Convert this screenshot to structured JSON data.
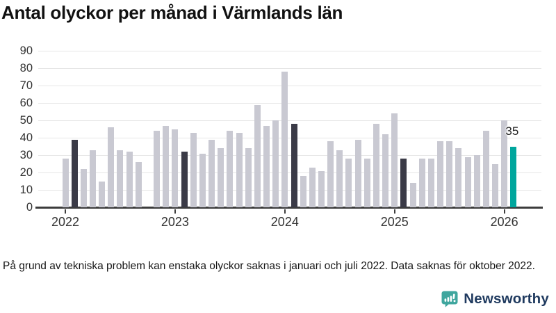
{
  "title": "Antal olyckor per månad i Värmlands län",
  "footnote": "På grund av tekniska problem kan enstaka olyckor saknas i januari och juli 2022. Data saknas för oktober 2022.",
  "branding": {
    "wordmark": "Newsworthy",
    "logo_icon": "speech-bubble-bar-chart-icon"
  },
  "colors": {
    "bar_default": "#c9c9d2",
    "bar_highlight": "#3b3b47",
    "bar_current": "#00a69d",
    "gridline": "#e6e6e6",
    "axis": "#3c3c3c",
    "title_text": "#111111",
    "tick_text": "#333333",
    "footnote_text": "#161616",
    "logo_teal": "#3fa69e",
    "logo_navy": "#1f3a5f"
  },
  "chart_data": {
    "type": "bar",
    "title": "Antal olyckor per månad i Värmlands län",
    "xlabel": "",
    "ylabel": "",
    "ylim": [
      0,
      90
    ],
    "yticks": [
      0,
      10,
      20,
      30,
      40,
      50,
      60,
      70,
      80,
      90
    ],
    "xtick_labels": [
      "2022",
      "2023",
      "2024",
      "2025",
      "2026"
    ],
    "grid": "horizontal",
    "legend": "none",
    "annotation": {
      "month": "2026-02",
      "text": "35"
    },
    "series": [
      {
        "name": "Antal olyckor",
        "points": [
          {
            "month": "2022-01",
            "value": 28,
            "style": "default"
          },
          {
            "month": "2022-02",
            "value": 39,
            "style": "highlight"
          },
          {
            "month": "2022-03",
            "value": 22,
            "style": "default"
          },
          {
            "month": "2022-04",
            "value": 33,
            "style": "default"
          },
          {
            "month": "2022-05",
            "value": 15,
            "style": "default"
          },
          {
            "month": "2022-06",
            "value": 46,
            "style": "default"
          },
          {
            "month": "2022-07",
            "value": 33,
            "style": "default"
          },
          {
            "month": "2022-08",
            "value": 32,
            "style": "default"
          },
          {
            "month": "2022-09",
            "value": 26,
            "style": "default"
          },
          {
            "month": "2022-10",
            "value": null,
            "style": "default"
          },
          {
            "month": "2022-11",
            "value": 44,
            "style": "default"
          },
          {
            "month": "2022-12",
            "value": 47,
            "style": "default"
          },
          {
            "month": "2023-01",
            "value": 45,
            "style": "default"
          },
          {
            "month": "2023-02",
            "value": 32,
            "style": "highlight"
          },
          {
            "month": "2023-03",
            "value": 43,
            "style": "default"
          },
          {
            "month": "2023-04",
            "value": 31,
            "style": "default"
          },
          {
            "month": "2023-05",
            "value": 39,
            "style": "default"
          },
          {
            "month": "2023-06",
            "value": 34,
            "style": "default"
          },
          {
            "month": "2023-07",
            "value": 44,
            "style": "default"
          },
          {
            "month": "2023-08",
            "value": 43,
            "style": "default"
          },
          {
            "month": "2023-09",
            "value": 34,
            "style": "default"
          },
          {
            "month": "2023-10",
            "value": 59,
            "style": "default"
          },
          {
            "month": "2023-11",
            "value": 47,
            "style": "default"
          },
          {
            "month": "2023-12",
            "value": 50,
            "style": "default"
          },
          {
            "month": "2024-01",
            "value": 78,
            "style": "default"
          },
          {
            "month": "2024-02",
            "value": 48,
            "style": "highlight"
          },
          {
            "month": "2024-03",
            "value": 18,
            "style": "default"
          },
          {
            "month": "2024-04",
            "value": 23,
            "style": "default"
          },
          {
            "month": "2024-05",
            "value": 21,
            "style": "default"
          },
          {
            "month": "2024-06",
            "value": 38,
            "style": "default"
          },
          {
            "month": "2024-07",
            "value": 33,
            "style": "default"
          },
          {
            "month": "2024-08",
            "value": 28,
            "style": "default"
          },
          {
            "month": "2024-09",
            "value": 39,
            "style": "default"
          },
          {
            "month": "2024-10",
            "value": 28,
            "style": "default"
          },
          {
            "month": "2024-11",
            "value": 48,
            "style": "default"
          },
          {
            "month": "2024-12",
            "value": 42,
            "style": "default"
          },
          {
            "month": "2025-01",
            "value": 54,
            "style": "default"
          },
          {
            "month": "2025-02",
            "value": 28,
            "style": "highlight"
          },
          {
            "month": "2025-03",
            "value": 14,
            "style": "default"
          },
          {
            "month": "2025-04",
            "value": 28,
            "style": "default"
          },
          {
            "month": "2025-05",
            "value": 28,
            "style": "default"
          },
          {
            "month": "2025-06",
            "value": 38,
            "style": "default"
          },
          {
            "month": "2025-07",
            "value": 38,
            "style": "default"
          },
          {
            "month": "2025-08",
            "value": 34,
            "style": "default"
          },
          {
            "month": "2025-09",
            "value": 29,
            "style": "default"
          },
          {
            "month": "2025-10",
            "value": 30,
            "style": "default"
          },
          {
            "month": "2025-11",
            "value": 44,
            "style": "default"
          },
          {
            "month": "2025-12",
            "value": 25,
            "style": "default"
          },
          {
            "month": "2026-01",
            "value": 50,
            "style": "default"
          },
          {
            "month": "2026-02",
            "value": 35,
            "style": "current"
          }
        ]
      }
    ]
  }
}
